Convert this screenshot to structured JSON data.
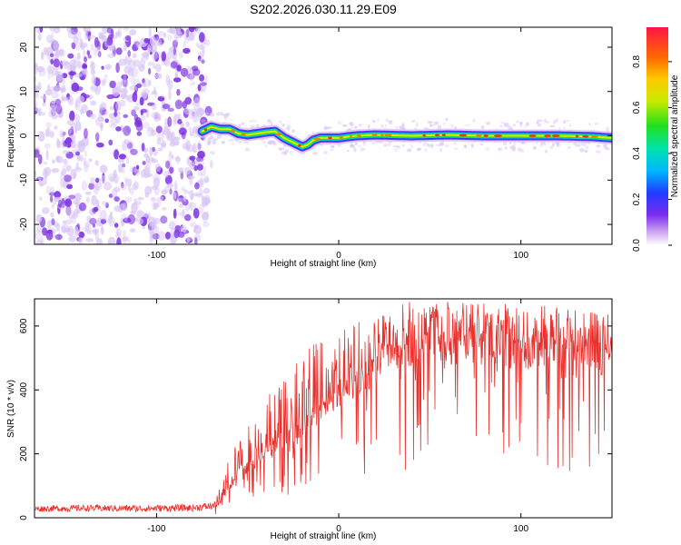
{
  "title": "S202.2026.030.11.29.E09",
  "colors": {
    "line": "#e8302c",
    "frame": "#000000",
    "background": "#ffffff",
    "noise_dark": "#7a2ee0",
    "noise_light": "#d8c4f5"
  },
  "chart_data": [
    {
      "type": "heatmap",
      "title": "S202.2026.030.11.29.E09",
      "xlabel": "Height of straight line (km)",
      "ylabel": "Frequency (Hz)",
      "xlim": [
        -167,
        150
      ],
      "ylim": [
        -24.5,
        24.5
      ],
      "x_ticks": [
        -100,
        0,
        100
      ],
      "y_ticks": [
        -20,
        -10,
        0,
        10,
        20
      ],
      "noise_region_x": [
        -167,
        -72
      ],
      "signal_start_x": -75,
      "ridge": {
        "x": [
          -75,
          -70,
          -65,
          -60,
          -55,
          -50,
          -45,
          -40,
          -35,
          -30,
          -25,
          -20,
          -17,
          -14,
          -10,
          -5,
          0,
          5,
          10,
          20,
          40,
          60,
          80,
          100,
          120,
          140,
          150
        ],
        "freq_hz": [
          1.0,
          2.0,
          1.5,
          1.5,
          0.5,
          0.2,
          0.5,
          0.8,
          1.0,
          -0.5,
          -1.5,
          -2.5,
          -2.0,
          -1.0,
          -0.5,
          -0.5,
          -0.5,
          -0.2,
          0.0,
          0.2,
          0.0,
          0.2,
          0.0,
          0.0,
          0.0,
          -0.2,
          -0.5
        ]
      },
      "colorbar": {
        "label": "Normalized spectral amplitude",
        "range": [
          0.0,
          0.95
        ],
        "ticks": [
          "0.0",
          "0.2",
          "0.4",
          "0.6",
          "0.8"
        ]
      }
    },
    {
      "type": "line",
      "xlabel": "Height of straight line (km)",
      "ylabel": "SNR (10 * v/v)",
      "xlim": [
        -167,
        150
      ],
      "ylim": [
        0,
        685
      ],
      "x_ticks": [
        -100,
        0,
        100
      ],
      "y_ticks": [
        0,
        200,
        400,
        600
      ],
      "series": [
        {
          "name": "SNR",
          "x": [
            -167,
            -140,
            -110,
            -80,
            -68,
            -62,
            -55,
            -45,
            -35,
            -25,
            -15,
            -5,
            5,
            15,
            25,
            35,
            50,
            70,
            90,
            110,
            130,
            150
          ],
          "base": [
            18,
            20,
            18,
            20,
            25,
            80,
            150,
            180,
            240,
            280,
            320,
            380,
            420,
            460,
            520,
            560,
            560,
            555,
            550,
            545,
            540,
            520
          ],
          "peak": [
            38,
            40,
            40,
            42,
            50,
            160,
            260,
            320,
            420,
            480,
            540,
            580,
            610,
            640,
            670,
            680,
            680,
            675,
            670,
            665,
            660,
            640
          ]
        }
      ]
    }
  ]
}
